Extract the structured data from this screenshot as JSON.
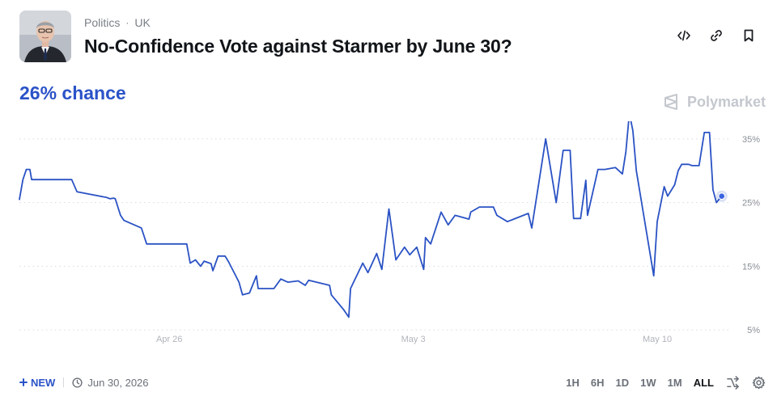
{
  "header": {
    "category": "Politics",
    "subcategory": "UK",
    "title": "No-Confidence Vote against Starmer by June 30?"
  },
  "headline_chance": "26% chance",
  "brand": {
    "name": "Polymarket"
  },
  "icons": {
    "embed": "code-icon",
    "link": "link-icon",
    "bookmark": "bookmark-icon",
    "new": "plus-icon",
    "date": "clock-icon",
    "swap": "shuffle-icon",
    "settings": "gear-icon"
  },
  "footer": {
    "new_label": "NEW",
    "end_date": "Jun 30, 2026",
    "ranges": [
      "1H",
      "6H",
      "1D",
      "1W",
      "1M",
      "ALL"
    ],
    "active_range": "ALL"
  },
  "colors": {
    "accent": "#2b53c8",
    "line": "#2a52c4",
    "grid": "#d7dade",
    "axis_text": "#8a8f96"
  },
  "chart_data": {
    "type": "line",
    "x_label": "",
    "y_label": "",
    "x_ticks": [
      "Apr 26",
      "May 3",
      "May 10"
    ],
    "x_tick_values": [
      4.3,
      11.3,
      18.3
    ],
    "y_ticks": [
      "5%",
      "15%",
      "25%",
      "35%"
    ],
    "y_tick_values": [
      5,
      15,
      25,
      35
    ],
    "xlim": [
      0,
      20.25
    ],
    "ylim": [
      3.5,
      36.5
    ],
    "grid": true,
    "series": [
      {
        "color": "#2a52c4",
        "x": [
          0.0,
          0.1,
          0.2,
          0.3,
          0.35,
          1.5,
          1.65,
          2.5,
          2.6,
          2.7,
          2.75,
          2.9,
          3.0,
          3.5,
          3.65,
          4.8,
          4.9,
          5.05,
          5.2,
          5.3,
          5.5,
          5.55,
          5.7,
          5.9,
          6.0,
          6.3,
          6.4,
          6.6,
          6.8,
          6.85,
          7.3,
          7.5,
          7.7,
          8.0,
          8.2,
          8.3,
          8.9,
          8.95,
          9.3,
          9.45,
          9.5,
          9.85,
          10.0,
          10.25,
          10.4,
          10.6,
          10.8,
          11.05,
          11.2,
          11.4,
          11.6,
          11.65,
          11.8,
          12.1,
          12.3,
          12.5,
          12.9,
          12.95,
          13.2,
          13.6,
          13.7,
          14.0,
          14.6,
          14.7,
          15.1,
          15.4,
          15.6,
          15.8,
          15.9,
          16.1,
          16.25,
          16.3,
          16.6,
          16.75,
          16.8,
          17.1,
          17.3,
          17.4,
          17.5,
          17.6,
          17.7,
          18.2,
          18.3,
          18.5,
          18.6,
          18.8,
          18.9,
          19.0,
          19.2,
          19.3,
          19.5,
          19.65,
          19.8,
          19.9,
          20.0,
          20.15
        ],
        "y": [
          25.5,
          28.6,
          30.2,
          30.2,
          28.6,
          28.6,
          26.7,
          25.8,
          25.6,
          25.7,
          25.6,
          23.0,
          22.2,
          21.0,
          18.5,
          18.5,
          15.5,
          16.0,
          15.0,
          15.8,
          15.4,
          14.3,
          16.6,
          16.6,
          15.7,
          12.5,
          10.5,
          10.8,
          13.5,
          11.5,
          11.5,
          13.0,
          12.5,
          12.7,
          12.0,
          12.8,
          12.0,
          10.5,
          8.2,
          7.0,
          11.5,
          15.5,
          14.0,
          17.0,
          14.5,
          24.0,
          16.0,
          18.0,
          16.8,
          18.0,
          14.5,
          19.5,
          18.5,
          23.5,
          21.5,
          23.0,
          22.4,
          23.5,
          24.3,
          24.3,
          23.0,
          22.0,
          23.3,
          21.0,
          35.0,
          25.0,
          33.2,
          33.2,
          22.5,
          22.5,
          28.5,
          23.0,
          30.2,
          30.2,
          30.2,
          30.5,
          29.5,
          33.0,
          39.0,
          36.3,
          30.0,
          13.5,
          22.0,
          27.5,
          26.0,
          27.8,
          30.0,
          31.0,
          31.0,
          30.8,
          30.8,
          36.0,
          36.0,
          27.0,
          25.0,
          26.0
        ],
        "last_value": 26
      }
    ]
  }
}
